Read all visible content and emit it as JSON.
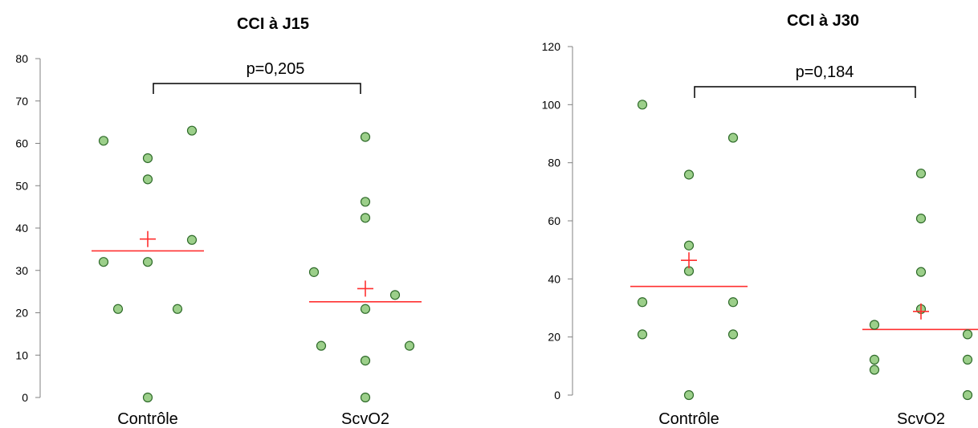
{
  "chart_data": [
    {
      "type": "scatter",
      "title": "CCI à J15",
      "categories": [
        "Contrôle",
        "ScvO2"
      ],
      "ylim": [
        0,
        80
      ],
      "yticks": [
        0,
        10,
        20,
        30,
        40,
        50,
        60,
        70,
        80
      ],
      "grid": false,
      "series": [
        {
          "category": "Contrôle",
          "values": [
            60.6,
            56.5,
            51.5,
            63.0,
            37.2,
            32.0,
            32.0,
            20.9,
            20.9,
            0.0
          ],
          "median": 34.6,
          "mean": 37.4
        },
        {
          "category": "ScvO2",
          "values": [
            61.5,
            46.2,
            42.4,
            29.6,
            24.2,
            20.9,
            12.2,
            12.2,
            8.7,
            0.0
          ],
          "median": 22.6,
          "mean": 25.7
        }
      ],
      "annotation": "p=0,205"
    },
    {
      "type": "scatter",
      "title": "CCI à J30",
      "categories": [
        "Contrôle",
        "ScvO2"
      ],
      "ylim": [
        0,
        120
      ],
      "yticks": [
        0,
        20,
        40,
        60,
        80,
        100,
        120
      ],
      "grid": false,
      "series": [
        {
          "category": "Contrôle",
          "values": [
            100.0,
            88.6,
            75.9,
            51.5,
            42.7,
            32.0,
            32.0,
            20.9,
            20.9,
            0.0
          ],
          "median": 37.4,
          "mean": 46.4
        },
        {
          "category": "ScvO2",
          "values": [
            76.3,
            60.8,
            42.4,
            29.6,
            24.2,
            20.9,
            12.2,
            12.2,
            8.7,
            0.0
          ],
          "median": 22.6,
          "mean": 28.8
        }
      ],
      "annotation": "p=0,184"
    }
  ]
}
